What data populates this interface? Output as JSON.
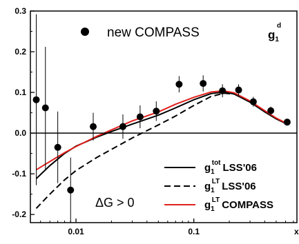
{
  "chart_data": {
    "type": "scatter",
    "x_scale": "log",
    "xlim": [
      0.0041,
      0.75
    ],
    "ylim": [
      -0.22,
      0.3
    ],
    "xlabel": "x",
    "ylabel": "",
    "x_ticks": [
      {
        "value": 0.01,
        "label": "0.01"
      },
      {
        "value": 0.1,
        "label": "0.1"
      }
    ],
    "y_ticks": [
      {
        "value": -0.2,
        "label": "-0.2"
      },
      {
        "value": -0.1,
        "label": "-0.1"
      },
      {
        "value": 0.0,
        "label": "0.0"
      },
      {
        "value": 0.1,
        "label": "0.1"
      },
      {
        "value": 0.2,
        "label": "0.2"
      },
      {
        "value": 0.3,
        "label": "0.3"
      }
    ],
    "panel_label": {
      "main": "g",
      "sub": "1",
      "sup": "d"
    },
    "annotation": "ΔG > 0",
    "zero_line": true,
    "points": {
      "name": "new COMPASS",
      "x": [
        0.0046,
        0.0055,
        0.007,
        0.009,
        0.014,
        0.025,
        0.035,
        0.048,
        0.075,
        0.12,
        0.175,
        0.24,
        0.32,
        0.45,
        0.62
      ],
      "y": [
        0.082,
        0.062,
        -0.035,
        -0.14,
        0.016,
        0.016,
        0.04,
        0.054,
        0.12,
        0.122,
        0.104,
        0.106,
        0.077,
        0.055,
        0.027
      ],
      "yerr": [
        0.21,
        0.15,
        0.088,
        0.08,
        0.034,
        0.03,
        0.028,
        0.024,
        0.02,
        0.02,
        0.016,
        0.014,
        0.012,
        0.01,
        0.008
      ]
    },
    "series": [
      {
        "name": "LSS'06",
        "label_main": "g",
        "label_sub": "1",
        "label_sup": "tot",
        "color": "#000000",
        "dash": "solid",
        "x": [
          0.0046,
          0.006,
          0.008,
          0.01,
          0.015,
          0.02,
          0.03,
          0.05,
          0.07,
          0.1,
          0.14,
          0.18,
          0.22,
          0.3,
          0.4,
          0.5,
          0.62
        ],
        "y": [
          -0.112,
          -0.08,
          -0.05,
          -0.032,
          -0.01,
          0.004,
          0.022,
          0.044,
          0.062,
          0.082,
          0.097,
          0.101,
          0.096,
          0.076,
          0.052,
          0.035,
          0.022
        ]
      },
      {
        "name": "LSS'06",
        "label_main": "g",
        "label_sub": "1",
        "label_sup": "LT",
        "color": "#000000",
        "dash": "dashed",
        "x": [
          0.0046,
          0.006,
          0.008,
          0.01,
          0.015,
          0.02,
          0.03,
          0.05,
          0.07,
          0.1,
          0.14,
          0.18,
          0.22,
          0.3,
          0.4,
          0.5,
          0.62
        ],
        "y": [
          -0.185,
          -0.15,
          -0.115,
          -0.092,
          -0.06,
          -0.04,
          -0.012,
          0.02,
          0.042,
          0.068,
          0.09,
          0.098,
          0.096,
          0.077,
          0.054,
          0.036,
          0.022
        ]
      },
      {
        "name": "COMPASS",
        "label_main": "g",
        "label_sub": "1",
        "label_sup": "LT",
        "color": "#e0201c",
        "dash": "solid",
        "x": [
          0.0046,
          0.006,
          0.008,
          0.01,
          0.015,
          0.02,
          0.03,
          0.05,
          0.07,
          0.1,
          0.14,
          0.18,
          0.22,
          0.3,
          0.4,
          0.5,
          0.62
        ],
        "y": [
          -0.09,
          -0.07,
          -0.048,
          -0.033,
          -0.008,
          0.008,
          0.03,
          0.052,
          0.071,
          0.088,
          0.101,
          0.104,
          0.099,
          0.079,
          0.055,
          0.037,
          0.023
        ]
      }
    ]
  }
}
